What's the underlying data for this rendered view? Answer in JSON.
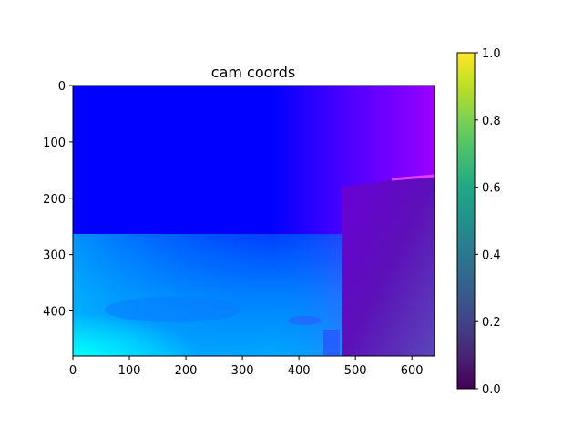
{
  "chart_data": [
    {
      "type": "heatmap",
      "title": "cam coords",
      "xlabel": "",
      "ylabel": "",
      "image_size": [
        640,
        480
      ],
      "xlim": [
        0,
        640
      ],
      "ylim": [
        480,
        0
      ],
      "x_ticks": [
        0,
        100,
        200,
        300,
        400,
        500,
        600
      ],
      "y_ticks": [
        0,
        100,
        200,
        300,
        400
      ],
      "grid": false,
      "description_regions": {
        "corner_colors": {
          "top_left": "#0000ff",
          "top_right": "#9900ff",
          "bottom_left": "#00ffff",
          "bottom_right": "#5a3fb8"
        },
        "horizon_y": 263,
        "right_block_x_start": 474,
        "right_block_y_start": 175
      }
    },
    {
      "type": "colorbar",
      "colormap": "viridis",
      "range": [
        0.0,
        1.0
      ],
      "ticks": [
        0.0,
        0.2,
        0.4,
        0.6,
        0.8,
        1.0
      ],
      "tick_labels": [
        "0.0",
        "0.2",
        "0.4",
        "0.6",
        "0.8",
        "1.0"
      ]
    }
  ]
}
